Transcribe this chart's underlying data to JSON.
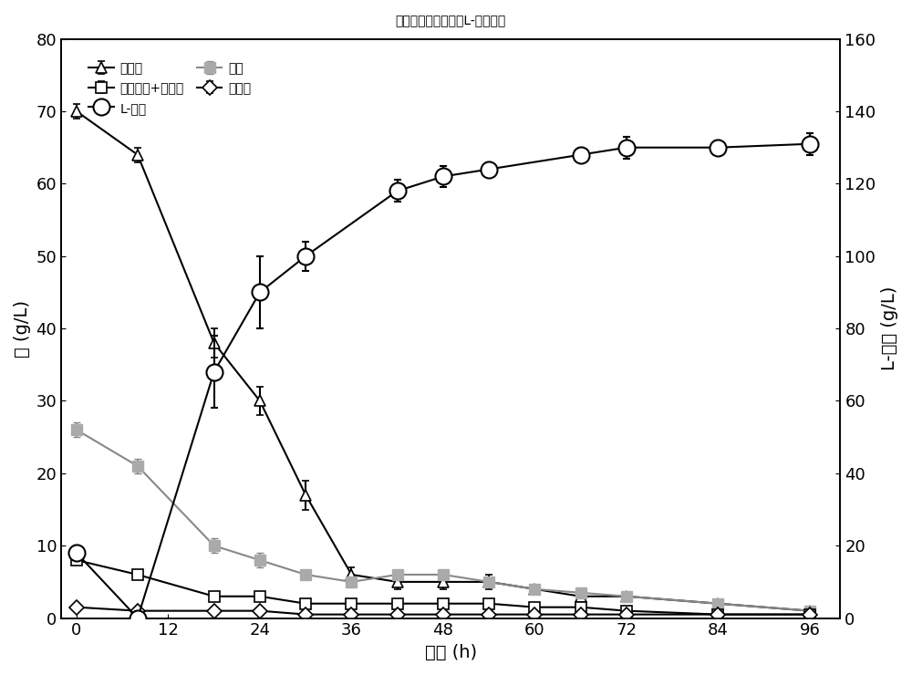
{
  "title": "以玉米秸秆为原料的L-乳酸发酵",
  "xlabel": "时间 (h)",
  "ylabel_left": "糖 (g/L)",
  "ylabel_right": "L-乳酸 (g/L)",
  "xlim": [
    -2,
    100
  ],
  "ylim_left": [
    0,
    80
  ],
  "ylim_right": [
    0,
    160
  ],
  "xticks": [
    0,
    12,
    24,
    36,
    48,
    60,
    72,
    84,
    96
  ],
  "yticks_left": [
    0,
    10,
    20,
    30,
    40,
    50,
    60,
    70,
    80
  ],
  "yticks_right": [
    0,
    20,
    40,
    60,
    80,
    100,
    120,
    140,
    160
  ],
  "glucose": {
    "label": "葡萄糖",
    "x": [
      0,
      8,
      18,
      24,
      30,
      36,
      42,
      48,
      54,
      60,
      66,
      72,
      84,
      96
    ],
    "y": [
      70,
      64,
      38,
      30,
      17,
      6,
      5,
      5,
      5,
      4,
      3,
      3,
      2,
      1
    ],
    "yerr": [
      1.0,
      1.0,
      2.0,
      2.0,
      2.0,
      1.0,
      1.0,
      1.0,
      1.0,
      0.5,
      0.5,
      0.5,
      0.5,
      0.5
    ],
    "color": "#000000",
    "marker": "^",
    "markersize": 9,
    "linewidth": 1.5
  },
  "xylose": {
    "label": "木糖",
    "x": [
      0,
      8,
      18,
      24,
      30,
      36,
      42,
      48,
      54,
      60,
      66,
      72,
      84,
      96
    ],
    "y": [
      26,
      21,
      10,
      8,
      6,
      5,
      6,
      6,
      5,
      4,
      3.5,
      3,
      2,
      1
    ],
    "yerr": [
      1.0,
      1.0,
      1.0,
      1.0,
      0.5,
      0.5,
      0.5,
      0.5,
      0.5,
      0.5,
      0.5,
      0.5,
      0.5,
      0.5
    ],
    "color": "#888888",
    "marker": "s",
    "markersize": 9,
    "linewidth": 1.5
  },
  "arabinose_mannose": {
    "label": "阿拉伯糖+甘露糖",
    "x": [
      0,
      8,
      18,
      24,
      30,
      36,
      42,
      48,
      54,
      60,
      66,
      72,
      84,
      96
    ],
    "y": [
      8,
      6,
      3,
      3,
      2,
      2,
      2,
      2,
      2,
      1.5,
      1.5,
      1,
      0.5,
      0.5
    ],
    "yerr": [
      0.5,
      0.5,
      0.5,
      0.5,
      0.5,
      0.5,
      0.5,
      0.5,
      0.5,
      0.5,
      0.5,
      0.5,
      0.5,
      0.5
    ],
    "color": "#000000",
    "marker": "s",
    "markersize": 9,
    "linewidth": 1.5
  },
  "galactose": {
    "label": "半乳糖",
    "x": [
      0,
      8,
      18,
      24,
      30,
      36,
      42,
      48,
      54,
      60,
      66,
      72,
      84,
      96
    ],
    "y": [
      1.5,
      1.0,
      1.0,
      1.0,
      0.5,
      0.5,
      0.5,
      0.5,
      0.5,
      0.5,
      0.5,
      0.5,
      0.5,
      0.5
    ],
    "yerr": [
      0.3,
      0.3,
      0.3,
      0.3,
      0.3,
      0.3,
      0.3,
      0.3,
      0.3,
      0.3,
      0.3,
      0.3,
      0.3,
      0.3
    ],
    "color": "#000000",
    "marker": "D",
    "markersize": 8,
    "linewidth": 1.5
  },
  "lactic_acid": {
    "label": "L-乳酸",
    "x": [
      0,
      8,
      18,
      24,
      30,
      42,
      48,
      54,
      66,
      72,
      84,
      96
    ],
    "y": [
      18,
      0,
      68,
      90,
      100,
      118,
      122,
      124,
      128,
      130,
      130,
      131
    ],
    "yerr": [
      2,
      2,
      10,
      10,
      4,
      3,
      3,
      2,
      2,
      3,
      2,
      3
    ],
    "color": "#000000",
    "marker": "o",
    "markersize": 13,
    "linewidth": 1.5
  },
  "background_color": "white",
  "title_fontsize": 16,
  "label_fontsize": 14,
  "tick_fontsize": 13,
  "legend_fontsize": 13
}
